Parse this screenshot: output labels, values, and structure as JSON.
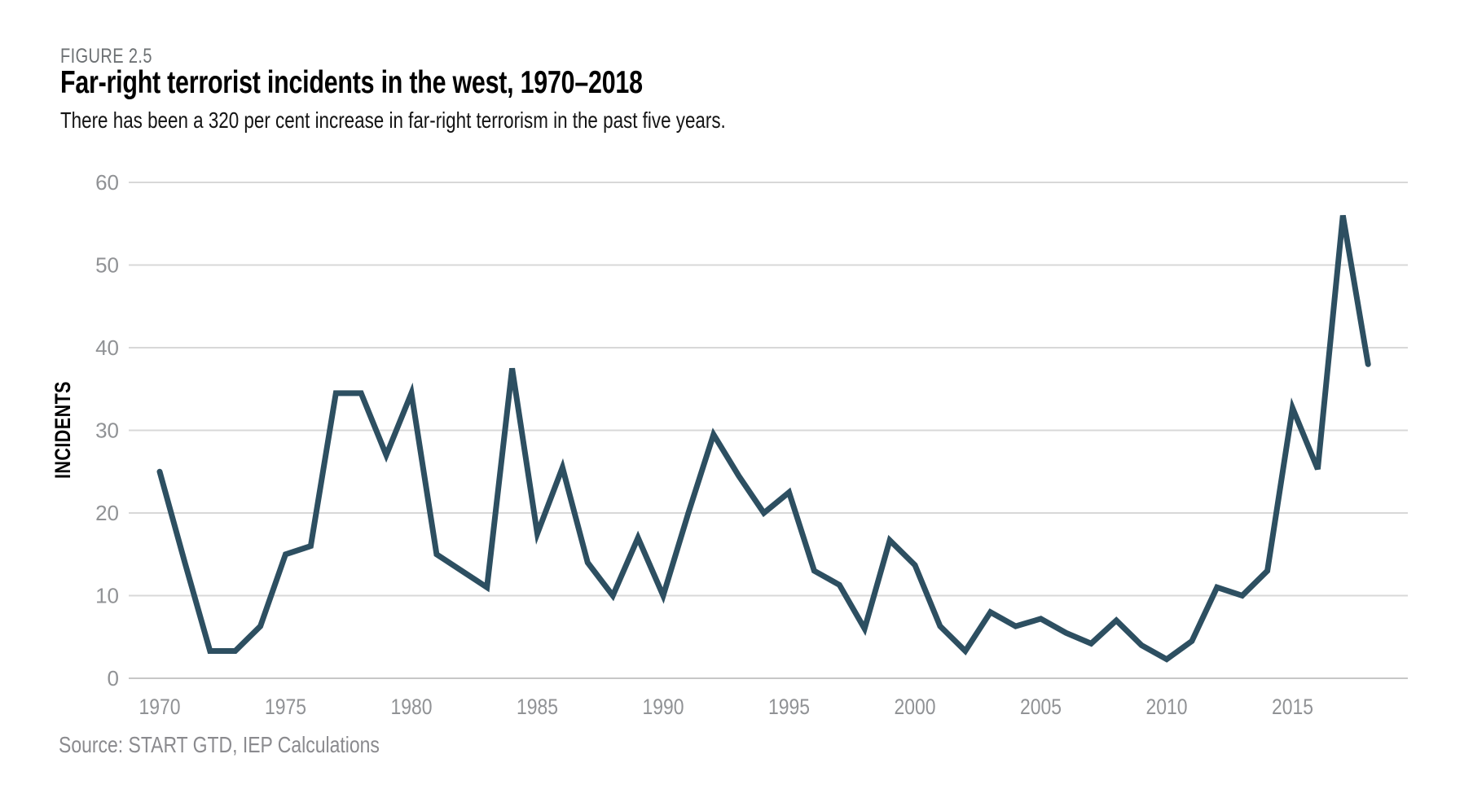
{
  "header": {
    "figure_label": "FIGURE 2.5",
    "title": "Far-right terrorist incidents in the west, 1970–2018",
    "subtitle": "There has been a 320 per cent increase in far-right terrorism in the past five years."
  },
  "source_note": "Source: START GTD, IEP Calculations",
  "chart_data": {
    "type": "line",
    "title": "Far-right terrorist incidents in the west, 1970–2018",
    "subtitle": "There has been a 320 per cent increase in far-right terrorism in the past five years.",
    "xlabel": "",
    "ylabel": "INCIDENTS",
    "x": [
      1970,
      1971,
      1972,
      1973,
      1974,
      1975,
      1976,
      1977,
      1978,
      1979,
      1980,
      1981,
      1982,
      1983,
      1984,
      1985,
      1986,
      1987,
      1988,
      1989,
      1990,
      1991,
      1992,
      1993,
      1994,
      1995,
      1996,
      1997,
      1998,
      1999,
      2000,
      2001,
      2002,
      2003,
      2004,
      2005,
      2006,
      2007,
      2008,
      2009,
      2010,
      2011,
      2012,
      2013,
      2014,
      2015,
      2016,
      2017,
      2018
    ],
    "series": [
      {
        "name": "Far-right terrorist incidents",
        "values": [
          25,
          14,
          3.3,
          3.3,
          6.3,
          15,
          16,
          34.5,
          34.5,
          27,
          34.5,
          15,
          13,
          11,
          37.5,
          17.5,
          25.5,
          14,
          10,
          17,
          10,
          20,
          29.5,
          24.5,
          20,
          22.5,
          13,
          11.3,
          6,
          16.7,
          13.7,
          6.3,
          3.3,
          8,
          6.3,
          7.2,
          5.5,
          4.2,
          7,
          4,
          2.3,
          4.5,
          11,
          10,
          13,
          32.7,
          25.3,
          56,
          38
        ]
      }
    ],
    "ylim": [
      0,
      60
    ],
    "y_ticks": [
      0,
      10,
      20,
      30,
      40,
      50,
      60
    ],
    "x_ticks": [
      1970,
      1975,
      1980,
      1985,
      1990,
      1995,
      2000,
      2005,
      2010,
      2015
    ],
    "grid": "horizontal-only",
    "legend": "none",
    "line_color": "#2d4f61",
    "gridline_color": "#d8d8d8",
    "baseline_color": "#c7c7c7",
    "axis_text_color": "#909295"
  }
}
